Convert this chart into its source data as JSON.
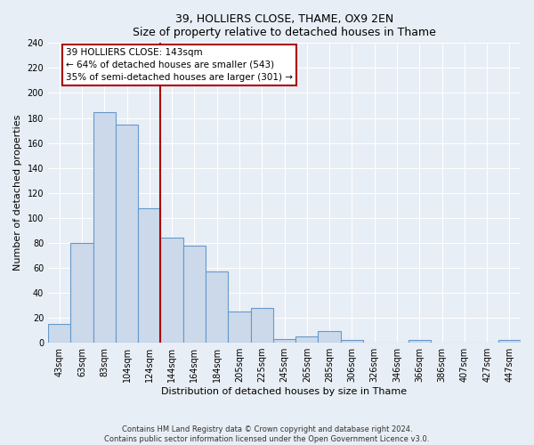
{
  "title": "39, HOLLIERS CLOSE, THAME, OX9 2EN",
  "subtitle": "Size of property relative to detached houses in Thame",
  "xlabel": "Distribution of detached houses by size in Thame",
  "ylabel": "Number of detached properties",
  "bin_labels": [
    "43sqm",
    "63sqm",
    "83sqm",
    "104sqm",
    "124sqm",
    "144sqm",
    "164sqm",
    "184sqm",
    "205sqm",
    "225sqm",
    "245sqm",
    "265sqm",
    "285sqm",
    "306sqm",
    "326sqm",
    "346sqm",
    "366sqm",
    "386sqm",
    "407sqm",
    "427sqm",
    "447sqm"
  ],
  "bar_values": [
    15,
    80,
    185,
    175,
    108,
    84,
    78,
    57,
    25,
    28,
    3,
    5,
    9,
    2,
    0,
    0,
    2,
    0,
    0,
    0,
    2
  ],
  "bar_color": "#ccd9ea",
  "bar_edge_color": "#6699cc",
  "vline_color": "#aa0000",
  "vline_index": 5,
  "annotation_text": "39 HOLLIERS CLOSE: 143sqm\n← 64% of detached houses are smaller (543)\n35% of semi-detached houses are larger (301) →",
  "annotation_box_color": "#ffffff",
  "annotation_box_edge": "#aa0000",
  "ylim": [
    0,
    240
  ],
  "yticks": [
    0,
    20,
    40,
    60,
    80,
    100,
    120,
    140,
    160,
    180,
    200,
    220,
    240
  ],
  "footer_line1": "Contains HM Land Registry data © Crown copyright and database right 2024.",
  "footer_line2": "Contains public sector information licensed under the Open Government Licence v3.0.",
  "bg_color": "#e8eef5",
  "plot_bg_color": "#e8eef5",
  "grid_color": "#ffffff",
  "title_fontsize": 9,
  "subtitle_fontsize": 8.5,
  "ylabel_fontsize": 8,
  "xlabel_fontsize": 8,
  "tick_fontsize": 7,
  "annotation_fontsize": 7.5
}
